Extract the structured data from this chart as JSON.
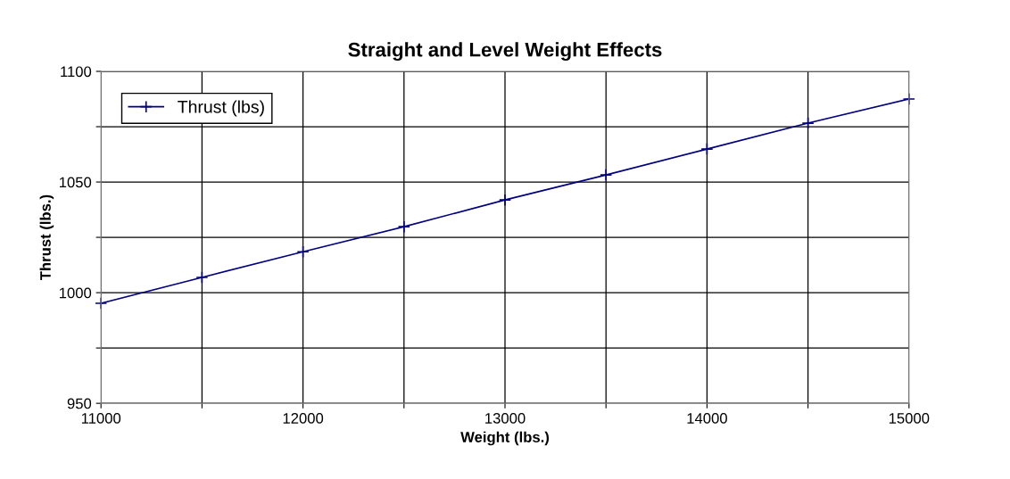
{
  "chart_data": {
    "type": "line",
    "title": "Straight and Level Weight Effects",
    "xlabel": "Weight (lbs.)",
    "ylabel": "Thrust (lbs.)",
    "x": [
      11000,
      11500,
      12000,
      12500,
      13000,
      13500,
      14000,
      14500,
      15000
    ],
    "series": [
      {
        "name": "Thrust (lbs)",
        "color": "#000080",
        "values": [
          995.2,
          1006.9,
          1018.5,
          1029.8,
          1041.9,
          1053.2,
          1064.9,
          1076.6,
          1087.5
        ]
      }
    ],
    "xlim": [
      11000,
      15000
    ],
    "xticks": [
      11000,
      {
        "value": 11500,
        "label": null
      },
      12000,
      {
        "value": 12500,
        "label": null
      },
      13000,
      {
        "value": 13500,
        "label": null
      },
      14000,
      {
        "value": 14500,
        "label": null
      },
      15000
    ],
    "ylim": [
      950,
      1100
    ],
    "yticks": [
      950,
      {
        "value": 975,
        "label": null
      },
      1000,
      {
        "value": 1025,
        "label": null
      },
      1050,
      {
        "value": 1075,
        "label": null
      },
      1100
    ],
    "grid": true,
    "legend": "top left",
    "marker": "cross",
    "line_style": "solid"
  }
}
